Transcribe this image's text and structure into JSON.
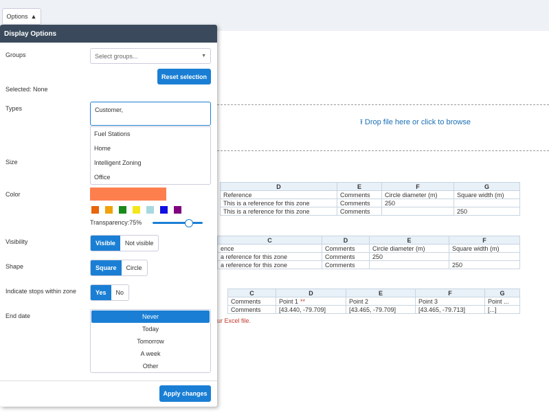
{
  "toolbar": {
    "options_button": "Options"
  },
  "panel": {
    "title": "Display Options",
    "groups": {
      "label": "Groups",
      "placeholder": "Select groups...",
      "reset_button": "Reset selection",
      "selected": "Selected: None"
    },
    "types": {
      "label": "Types",
      "input_value": "Customer,",
      "options": [
        "Fuel Stations",
        "Home",
        "Intelligent Zoning",
        "Office"
      ]
    },
    "size": {
      "label": "Size"
    },
    "color": {
      "label": "Color",
      "current": "#fd7f4e",
      "swatches": [
        "#e8650a",
        "#f0a30a",
        "#1a8a1a",
        "#f5e61a",
        "#a8d8e0",
        "#1010e0",
        "#800080"
      ],
      "transparency_label": "Transparency:75%"
    },
    "visibility": {
      "label": "Visibility",
      "options": [
        "Visible",
        "Not visible"
      ]
    },
    "shape": {
      "label": "Shape",
      "options": [
        "Square",
        "Circle"
      ]
    },
    "indicate_stops": {
      "label": "Indicate stops within zone",
      "options": [
        "Yes",
        "No"
      ]
    },
    "end_date": {
      "label": "End date",
      "options": [
        "Never",
        "Today",
        "Tomorrow",
        "A week",
        "Other"
      ]
    },
    "apply_button": "Apply changes"
  },
  "background": {
    "drop_zone": "Drop file here or click to browse",
    "table1": {
      "headers": [
        "D",
        "E",
        "F",
        "G"
      ],
      "rows": [
        [
          "Reference",
          "Comments",
          "Circle diameter (m)",
          "Square width (m)"
        ],
        [
          "This is a reference for this zone",
          "Comments",
          "250",
          ""
        ],
        [
          "This is a reference for this zone",
          "Comments",
          "",
          "250"
        ]
      ]
    },
    "table2": {
      "headers": [
        "C",
        "D",
        "E",
        "F"
      ],
      "rows": [
        [
          "ence",
          "Comments",
          "Circle diameter (m)",
          "Square width (m)"
        ],
        [
          "a reference for this zone",
          "Comments",
          "250",
          ""
        ],
        [
          "a reference for this zone",
          "Comments",
          "",
          "250"
        ]
      ]
    },
    "table3": {
      "headers": [
        "C",
        "D",
        "E",
        "F",
        "G"
      ],
      "marker": "**",
      "rows": [
        [
          "Comments",
          "Point 1",
          "Point 2",
          "Point 3",
          "Point ..."
        ],
        [
          "Comments",
          "[43.440, -79.709]",
          "[43.465, -79.709]",
          "[43.465, -79.713]",
          "[...]"
        ]
      ]
    },
    "error_text": "ur Excel file."
  }
}
